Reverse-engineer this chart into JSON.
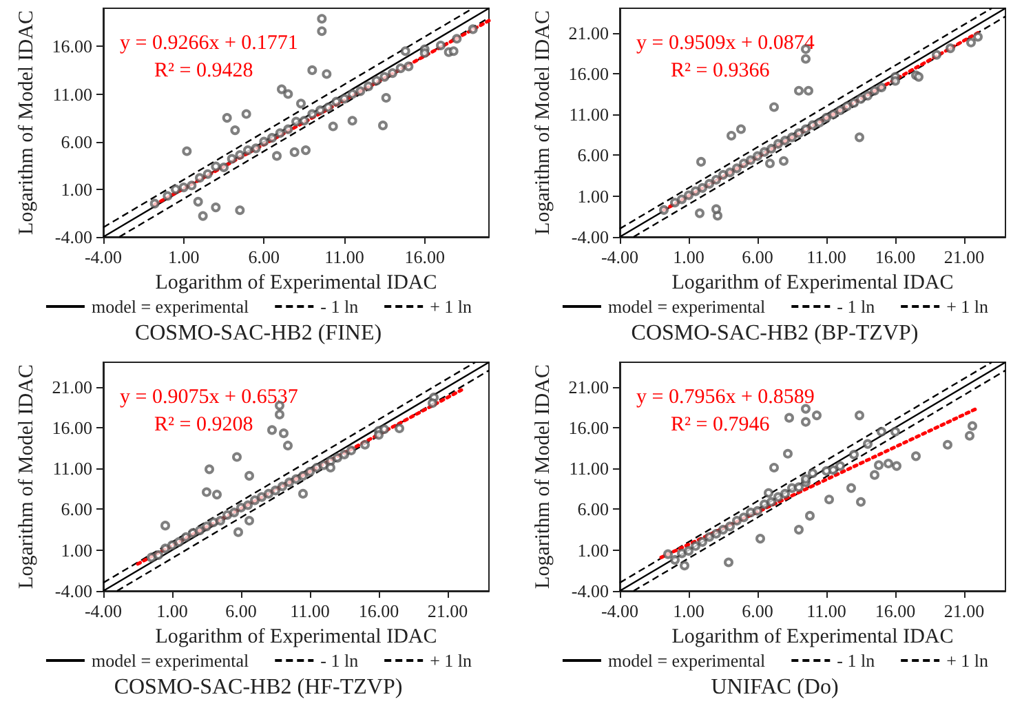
{
  "chart_data": [
    {
      "type": "scatter",
      "title": "COSMO-SAC-HB2 (FINE)",
      "xlabel": "Logarithm of Experimental IDAC",
      "ylabel": "Logarithm of Model IDAC",
      "annotations": [
        "y = 0.9266x + 0.1771",
        "R² = 0.9428"
      ],
      "legend": "bottom",
      "grid": false,
      "marker": "circle",
      "xlim": [
        -4,
        20
      ],
      "ylim": [
        -4,
        20
      ],
      "xticks": [
        {
          "value": -4,
          "label": "-4.00"
        },
        {
          "value": 1,
          "label": "1.00"
        },
        {
          "value": 6,
          "label": "6.00"
        },
        {
          "value": 11,
          "label": "11.00"
        },
        {
          "value": 16,
          "label": "16.00"
        }
      ],
      "yticks": [
        {
          "value": -4,
          "label": "-4.00"
        },
        {
          "value": 1,
          "label": "1.00"
        },
        {
          "value": 6,
          "label": "6.00"
        },
        {
          "value": 11,
          "label": "11.00"
        },
        {
          "value": 16,
          "label": "16.00"
        }
      ],
      "series": [
        {
          "type": "scatter",
          "color": "#555555",
          "x": [
            -0.8,
            0,
            0.5,
            1,
            1.5,
            2,
            2.5,
            3,
            3.5,
            4,
            4.5,
            5,
            5.5,
            6,
            6.5,
            7,
            7.5,
            8,
            8.5,
            9,
            9.5,
            10,
            10.5,
            11,
            11.5,
            12,
            12.5,
            13,
            13.5,
            14,
            14.5,
            15,
            16,
            16,
            17,
            18,
            19,
            17.5,
            2.2,
            3.0,
            4.5,
            1.9,
            1.2,
            3.7,
            4.2,
            4.9,
            7.1,
            7.5,
            8.3,
            9.6,
            9.6,
            9.0,
            9.9,
            13.4,
            11.5,
            7.9,
            6.8,
            8.6,
            10.3,
            17.8,
            13.6,
            14.8
          ],
          "values": [
            -0.5,
            0.3,
            1.0,
            1.2,
            1.4,
            2.2,
            2.6,
            3.4,
            3.3,
            4.2,
            4.6,
            5.1,
            5.3,
            6.0,
            6.4,
            6.9,
            7.3,
            8.1,
            8.2,
            8.9,
            9.3,
            9.6,
            10.2,
            10.5,
            11.0,
            11.3,
            11.8,
            12.4,
            12.8,
            13.2,
            13.7,
            13.9,
            15.7,
            15.3,
            16.1,
            16.8,
            17.8,
            15.4,
            -1.8,
            -0.9,
            -1.2,
            -0.3,
            5.0,
            8.5,
            7.2,
            8.9,
            11.5,
            11.0,
            10.0,
            18.9,
            17.6,
            13.5,
            13.1,
            7.7,
            8.2,
            4.9,
            4.5,
            5.1,
            7.6,
            15.5,
            10.6,
            15.5
          ]
        },
        {
          "type": "line",
          "name": "model = experimental",
          "color": "#000000",
          "line_style": "solid",
          "marker": "none",
          "x": [
            -4,
            20
          ],
          "values": [
            -4,
            20
          ]
        },
        {
          "type": "line",
          "name": "- 1 ln",
          "color": "#000000",
          "line_style": "dashed",
          "marker": "none",
          "x": [
            -3,
            20
          ],
          "values": [
            -4,
            19
          ]
        },
        {
          "type": "line",
          "name": "+ 1 ln",
          "color": "#000000",
          "line_style": "dashed",
          "marker": "none",
          "x": [
            -4,
            19
          ],
          "values": [
            -3,
            20
          ]
        },
        {
          "type": "line",
          "color": "#ff0000",
          "line_style": "dotted",
          "marker": "none",
          "x": [
            -0.8,
            20
          ],
          "values": [
            -0.6,
            18.7
          ]
        }
      ]
    },
    {
      "type": "scatter",
      "title": "COSMO-SAC-HB2 (BP-TZVP)",
      "xlabel": "Logarithm of Experimental IDAC",
      "ylabel": "Logarithm of Model IDAC",
      "annotations": [
        "y = 0.9509x + 0.0874",
        "R² = 0.9366"
      ],
      "legend": "bottom",
      "grid": false,
      "marker": "circle",
      "xlim": [
        -4,
        24
      ],
      "ylim": [
        -4,
        24
      ],
      "xticks": [
        {
          "value": -4,
          "label": "-4.00"
        },
        {
          "value": 1,
          "label": "1.00"
        },
        {
          "value": 6,
          "label": "6.00"
        },
        {
          "value": 11,
          "label": "11.00"
        },
        {
          "value": 16,
          "label": "16.00"
        },
        {
          "value": 21,
          "label": "21.00"
        }
      ],
      "yticks": [
        {
          "value": -4,
          "label": "-4.00"
        },
        {
          "value": 1,
          "label": "1.00"
        },
        {
          "value": 6,
          "label": "6.00"
        },
        {
          "value": 11,
          "label": "11.00"
        },
        {
          "value": 16,
          "label": "16.00"
        },
        {
          "value": 21,
          "label": "21.00"
        }
      ],
      "series": [
        {
          "type": "scatter",
          "color": "#555555",
          "x": [
            -0.8,
            0,
            0.5,
            1,
            1.5,
            2,
            2.5,
            3,
            3.5,
            4,
            4.5,
            5,
            5.5,
            6,
            6.5,
            7,
            7.5,
            8,
            8.5,
            9,
            9.5,
            10,
            10.5,
            11,
            11.5,
            12,
            12.5,
            13,
            13.5,
            14,
            14.5,
            15,
            16,
            16,
            17.5,
            19,
            20,
            21.5,
            22,
            9.5,
            9.5,
            9.0,
            9.7,
            7.2,
            4.1,
            4.8,
            13.4,
            1.8,
            3.1,
            3.0,
            7.9,
            6.9,
            1.9,
            17.7
          ],
          "values": [
            -0.7,
            0.2,
            0.6,
            1.1,
            1.6,
            2.0,
            2.5,
            3.0,
            3.6,
            3.9,
            4.4,
            5.0,
            5.4,
            5.9,
            6.4,
            6.8,
            7.4,
            7.8,
            8.2,
            8.7,
            9.2,
            9.7,
            10.0,
            10.6,
            11.0,
            11.5,
            12.0,
            12.4,
            12.9,
            13.3,
            13.9,
            14.3,
            15.6,
            15.1,
            15.8,
            18.3,
            19.1,
            19.8,
            20.5,
            19.0,
            17.8,
            13.9,
            13.9,
            11.9,
            8.4,
            9.2,
            8.2,
            -1.1,
            -1.4,
            -0.6,
            5.3,
            5.0,
            5.2,
            15.6
          ]
        },
        {
          "type": "line",
          "name": "model = experimental",
          "color": "#000000",
          "line_style": "solid",
          "marker": "none",
          "x": [
            -4,
            24
          ],
          "values": [
            -4,
            24
          ]
        },
        {
          "type": "line",
          "name": "- 1 ln",
          "color": "#000000",
          "line_style": "dashed",
          "marker": "none",
          "x": [
            -3,
            24
          ],
          "values": [
            -4,
            23
          ]
        },
        {
          "type": "line",
          "name": "+ 1 ln",
          "color": "#000000",
          "line_style": "dashed",
          "marker": "none",
          "x": [
            -4,
            23
          ],
          "values": [
            -3,
            24
          ]
        },
        {
          "type": "line",
          "color": "#ff0000",
          "line_style": "dotted",
          "marker": "none",
          "x": [
            -0.8,
            22
          ],
          "values": [
            -0.7,
            21.0
          ]
        }
      ]
    },
    {
      "type": "scatter",
      "title": "COSMO-SAC-HB2 (HF-TZVP)",
      "xlabel": "Logarithm of Experimental IDAC",
      "ylabel": "Logarithm of Model IDAC",
      "annotations": [
        "y = 0.9075x + 0.6537",
        "R² = 0.9208"
      ],
      "legend": "bottom",
      "grid": false,
      "marker": "circle",
      "xlim": [
        -4,
        24
      ],
      "ylim": [
        -4,
        24
      ],
      "xticks": [
        {
          "value": -4,
          "label": "-4.00"
        },
        {
          "value": 1,
          "label": "1.00"
        },
        {
          "value": 6,
          "label": "6.00"
        },
        {
          "value": 11,
          "label": "11.00"
        },
        {
          "value": 16,
          "label": "16.00"
        },
        {
          "value": 21,
          "label": "21.00"
        }
      ],
      "yticks": [
        {
          "value": -4,
          "label": "-4.00"
        },
        {
          "value": 1,
          "label": "1.00"
        },
        {
          "value": 6,
          "label": "6.00"
        },
        {
          "value": 11,
          "label": "11.00"
        },
        {
          "value": 16,
          "label": "16.00"
        },
        {
          "value": 21,
          "label": "21.00"
        }
      ],
      "series": [
        {
          "type": "scatter",
          "color": "#555555",
          "x": [
            -0.5,
            0,
            0.5,
            1,
            1.5,
            2,
            2.5,
            3,
            3.5,
            4,
            4.5,
            5,
            5.5,
            6,
            6.5,
            7,
            7.5,
            8,
            8.5,
            9,
            9.5,
            10,
            10.5,
            11,
            11.5,
            12,
            12.5,
            13,
            13.5,
            14,
            15,
            16,
            16,
            17.5,
            8.8,
            8.8,
            8.25,
            9.1,
            9.4,
            5.7,
            6.6,
            3.7,
            4.25,
            3.5,
            5.8,
            6.6,
            10.5,
            12.5,
            16.4,
            20.0,
            19.9,
            0.5
          ],
          "values": [
            0.1,
            0.4,
            1.2,
            1.6,
            2.0,
            2.6,
            3.1,
            3.4,
            3.9,
            4.4,
            4.6,
            5.3,
            5.6,
            6.2,
            6.5,
            7.1,
            7.5,
            7.9,
            8.3,
            8.8,
            9.3,
            9.7,
            10.1,
            10.6,
            11.1,
            11.4,
            11.9,
            12.3,
            12.7,
            13.2,
            13.9,
            15.6,
            15.1,
            15.9,
            18.7,
            17.6,
            15.7,
            15.3,
            13.8,
            12.4,
            10.1,
            10.9,
            7.8,
            8.1,
            3.2,
            4.6,
            7.9,
            11.1,
            15.8,
            19.7,
            19.0,
            4.0
          ]
        },
        {
          "type": "line",
          "name": "model = experimental",
          "color": "#000000",
          "line_style": "solid",
          "marker": "none",
          "x": [
            -4,
            24
          ],
          "values": [
            -4,
            24
          ]
        },
        {
          "type": "line",
          "name": "- 1 ln",
          "color": "#000000",
          "line_style": "dashed",
          "marker": "none",
          "x": [
            -3,
            24
          ],
          "values": [
            -4,
            23
          ]
        },
        {
          "type": "line",
          "name": "+ 1 ln",
          "color": "#000000",
          "line_style": "dashed",
          "marker": "none",
          "x": [
            -4,
            23
          ],
          "values": [
            -3,
            24
          ]
        },
        {
          "type": "line",
          "color": "#ff0000",
          "line_style": "dotted",
          "marker": "none",
          "x": [
            -1.5,
            22
          ],
          "values": [
            -0.7,
            20.6
          ]
        }
      ]
    },
    {
      "type": "scatter",
      "title": "UNIFAC (Do)",
      "xlabel": "Logarithm of Experimental IDAC",
      "ylabel": "Logarithm of Model IDAC",
      "annotations": [
        "y = 0.7956x + 0.8589",
        "R² = 0.7946"
      ],
      "legend": "bottom",
      "grid": false,
      "marker": "circle",
      "xlim": [
        -4,
        24
      ],
      "ylim": [
        -4,
        24
      ],
      "xticks": [
        {
          "value": -4,
          "label": "-4.00"
        },
        {
          "value": 1,
          "label": "1.00"
        },
        {
          "value": 6,
          "label": "6.00"
        },
        {
          "value": 11,
          "label": "11.00"
        },
        {
          "value": 16,
          "label": "16.00"
        },
        {
          "value": 21,
          "label": "21.00"
        }
      ],
      "yticks": [
        {
          "value": -4,
          "label": "-4.00"
        },
        {
          "value": 1,
          "label": "1.00"
        },
        {
          "value": 6,
          "label": "6.00"
        },
        {
          "value": 11,
          "label": "11.00"
        },
        {
          "value": 16,
          "label": "16.00"
        },
        {
          "value": 21,
          "label": "21.00"
        }
      ],
      "series": [
        {
          "type": "scatter",
          "color": "#555555",
          "x": [
            -0.5,
            0,
            0.5,
            1,
            1.5,
            2,
            2.5,
            3,
            3.5,
            4,
            4.5,
            5,
            5.5,
            6,
            6.5,
            7,
            7.5,
            8,
            8.5,
            9,
            9.5,
            10,
            11,
            12,
            13,
            14,
            16,
            9.5,
            9.5,
            10.3,
            8.3,
            13.4,
            8.2,
            7.2,
            6.8,
            11.2,
            12.8,
            13.5,
            14.5,
            14.8,
            15.5,
            16.1,
            17.5,
            19.8,
            21.4,
            21.6,
            9.0,
            9.8,
            6.2,
            3.9,
            0.7,
            15.0,
            9.5,
            11.5
          ],
          "values": [
            0.5,
            -0.2,
            0.6,
            0.9,
            1.5,
            2.0,
            2.6,
            3.0,
            3.5,
            3.9,
            4.6,
            5.0,
            5.6,
            5.8,
            6.6,
            6.9,
            7.5,
            7.9,
            8.6,
            8.7,
            9.3,
            10.4,
            10.7,
            11.3,
            12.7,
            14.0,
            15.5,
            16.7,
            18.3,
            17.5,
            17.2,
            17.5,
            12.8,
            11.1,
            8.0,
            7.2,
            8.6,
            6.9,
            10.2,
            11.4,
            11.6,
            11.3,
            12.5,
            13.9,
            15.0,
            16.2,
            3.5,
            5.2,
            2.4,
            -0.5,
            -0.9,
            15.5,
            9.7,
            10.8
          ]
        },
        {
          "type": "line",
          "name": "model = experimental",
          "color": "#000000",
          "line_style": "solid",
          "marker": "none",
          "x": [
            -4,
            24
          ],
          "values": [
            -4,
            24
          ]
        },
        {
          "type": "line",
          "name": "- 1 ln",
          "color": "#000000",
          "line_style": "dashed",
          "marker": "none",
          "x": [
            -3,
            24
          ],
          "values": [
            -4,
            23
          ]
        },
        {
          "type": "line",
          "name": "+ 1 ln",
          "color": "#000000",
          "line_style": "dashed",
          "marker": "none",
          "x": [
            -4,
            23
          ],
          "values": [
            -3,
            24
          ]
        },
        {
          "type": "line",
          "color": "#ff0000",
          "line_style": "dotted",
          "marker": "none",
          "x": [
            -1,
            22
          ],
          "values": [
            0.1,
            18.4
          ]
        }
      ]
    }
  ]
}
